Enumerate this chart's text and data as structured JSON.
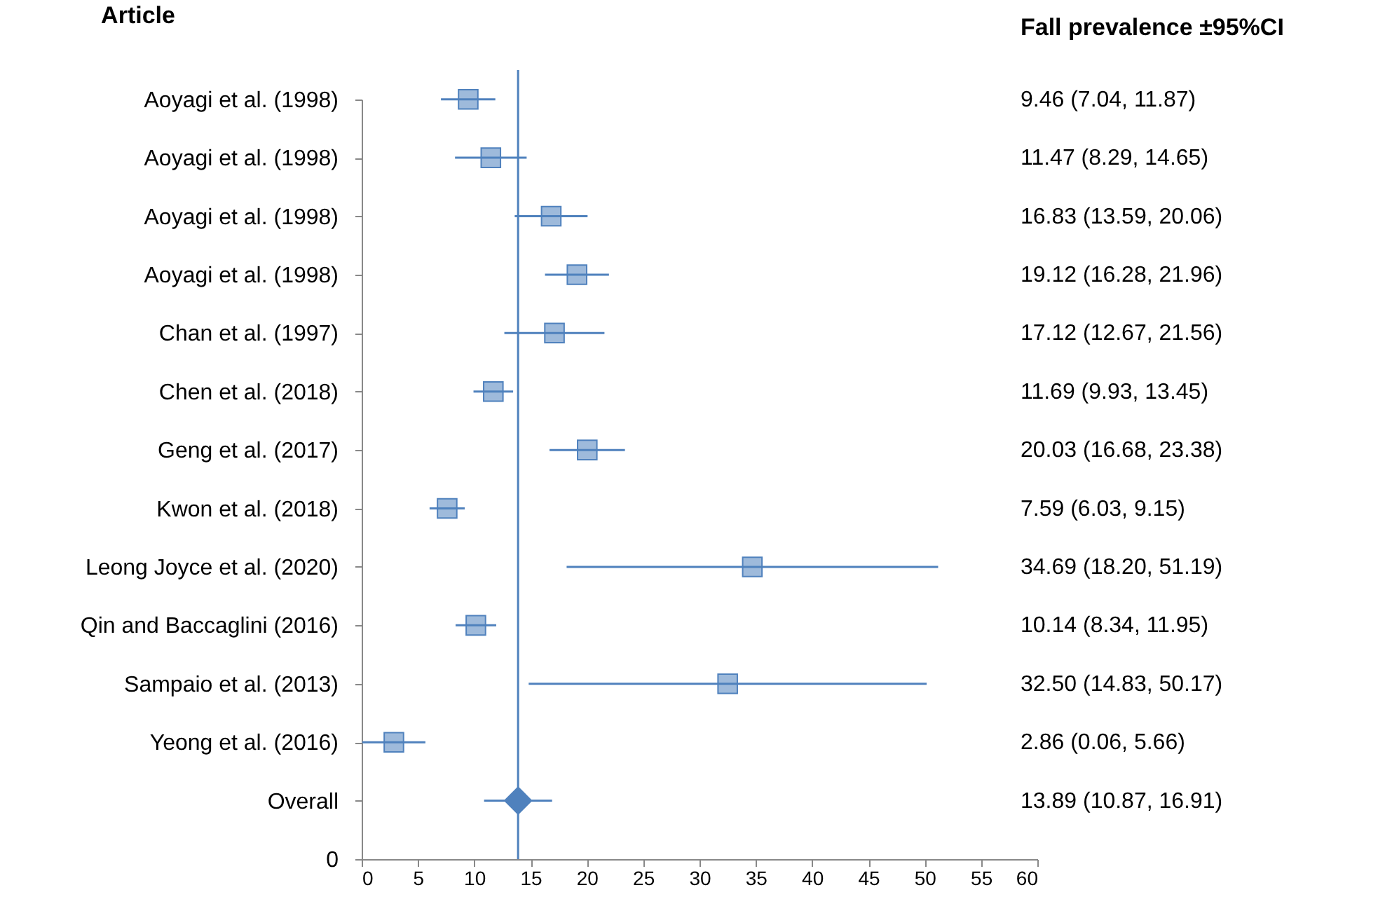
{
  "chart_data": {
    "type": "scatter",
    "orientation": "horizontal",
    "ylabel": "Article",
    "categories": [
      "Aoyagi et al. (1998)",
      "Aoyagi et al.  (1998)",
      "Aoyagi et al. (1998)",
      "Aoyagi et al.  (1998)",
      "Chan et al. (1997)",
      "Chen et al. (2018)",
      "Geng et al.  (2017)",
      "Kwon et al. (2018)",
      "Leong Joyce et al. (2020)",
      "Qin and Baccaglini (2016)",
      "Sampaio et al. (2013)",
      "Yeong et al. (2016)",
      "Overall"
    ],
    "series": [
      {
        "marker": "square",
        "color": "#4f81bd",
        "values": [
          9.46,
          11.47,
          16.83,
          19.12,
          17.12,
          11.69,
          20.03,
          7.59,
          34.69,
          10.14,
          32.5,
          2.86,
          null
        ],
        "errors": [
          [
            7.04,
            11.87
          ],
          [
            8.29,
            14.65
          ],
          [
            13.59,
            20.06
          ],
          [
            16.28,
            21.96
          ],
          [
            12.67,
            21.56
          ],
          [
            9.93,
            13.45
          ],
          [
            16.68,
            23.38
          ],
          [
            6.03,
            9.15
          ],
          [
            18.2,
            51.19
          ],
          [
            8.34,
            11.95
          ],
          [
            14.83,
            50.17
          ],
          [
            0.06,
            5.66
          ],
          null
        ]
      },
      {
        "marker": "diamond",
        "color": "#4f81bd",
        "values": [
          null,
          null,
          null,
          null,
          null,
          null,
          null,
          null,
          null,
          null,
          null,
          null,
          13.89
        ],
        "errors": [
          null,
          null,
          null,
          null,
          null,
          null,
          null,
          null,
          null,
          null,
          null,
          null,
          [
            10.87,
            16.91
          ]
        ]
      }
    ],
    "value_labels": [
      "9.46 (7.04, 11.87)",
      "11.47 (8.29, 14.65)",
      "16.83 (13.59, 20.06)",
      "19.12 (16.28, 21.96)",
      "17.12 (12.67, 21.56)",
      "11.69 (9.93, 13.45)",
      "20.03 (16.68, 23.38)",
      "7.59 (6.03, 9.15)",
      "34.69 (18.20, 51.19)",
      "10.14 (8.34, 11.95)",
      "32.50 (14.83, 50.17)",
      "2.86 (0.06, 5.66)",
      "13.89 (10.87, 16.91)"
    ],
    "xlim": [
      0,
      60
    ],
    "xticks": [
      0,
      5,
      10,
      15,
      20,
      25,
      30,
      35,
      40,
      45,
      50,
      55,
      60
    ],
    "ref_lines": [
      {
        "axis": "x",
        "value": 13.89,
        "color": "#4f81bd"
      }
    ],
    "annotations": [
      "Fall prevalence ±95%CI",
      "0"
    ]
  }
}
